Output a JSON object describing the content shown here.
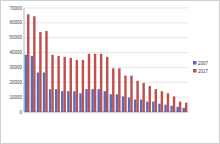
{
  "chart_data": {
    "type": "bar",
    "categories": [
      null,
      null,
      null,
      null,
      null,
      null,
      null,
      null,
      null,
      null,
      null,
      null,
      null,
      null,
      null,
      null,
      null,
      null,
      null,
      null,
      null,
      null,
      null,
      null,
      null,
      null,
      null
    ],
    "series": [
      {
        "name": "2007",
        "color": "#4f6fbf",
        "values": [
          38500,
          37800,
          26600,
          26600,
          15400,
          15400,
          14000,
          14000,
          14000,
          12600,
          15400,
          15400,
          15400,
          14000,
          11900,
          11900,
          10500,
          9800,
          8400,
          8400,
          7000,
          7000,
          5600,
          4900,
          4200,
          3500,
          2800
        ]
      },
      {
        "name": "2017",
        "color": "#c0504d",
        "values": [
          65800,
          64400,
          53900,
          54600,
          38500,
          37800,
          37100,
          36400,
          35000,
          35000,
          39200,
          39200,
          39200,
          37100,
          29400,
          29400,
          24500,
          24500,
          21000,
          19600,
          17500,
          15400,
          14000,
          12600,
          10500,
          7000,
          6300
        ]
      }
    ],
    "ylim": [
      0,
      70000
    ],
    "yticks": [
      0,
      10000,
      20000,
      30000,
      40000,
      50000,
      60000,
      70000
    ],
    "grid": true,
    "legend": "right"
  }
}
